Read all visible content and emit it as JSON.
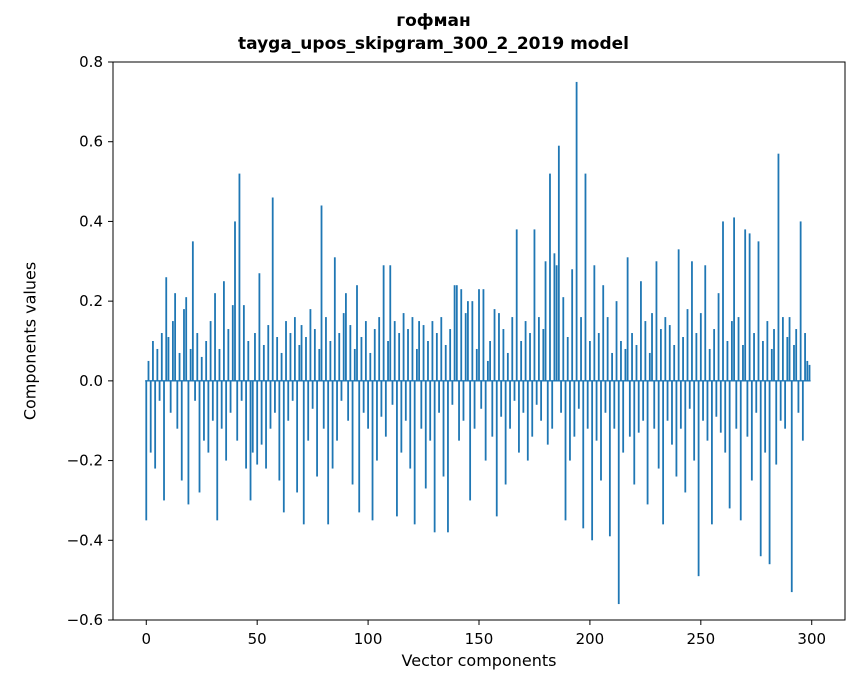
{
  "figure": {
    "title": "гофман",
    "subtitle": "tayga_upos_skipgram_300_2_2019 model",
    "xlabel": "Vector components",
    "ylabel": "Components values"
  },
  "chart_data": {
    "type": "bar",
    "title": "гофман",
    "subtitle": "tayga_upos_skipgram_300_2_2019 model",
    "xlabel": "Vector components",
    "ylabel": "Components values",
    "bar_color": "#1f77b4",
    "n_components": 300,
    "xlim": [
      -15,
      315
    ],
    "ylim": [
      -0.6,
      0.8
    ],
    "x_ticks": [
      0,
      50,
      100,
      150,
      200,
      250,
      300
    ],
    "y_ticks": [
      -0.6,
      -0.4,
      -0.2,
      0.0,
      0.2,
      0.4,
      0.6,
      0.8
    ],
    "grid": false,
    "legend": "none",
    "values": [
      -0.35,
      0.05,
      -0.18,
      0.1,
      -0.22,
      0.08,
      -0.05,
      0.12,
      -0.3,
      0.26,
      0.11,
      -0.08,
      0.15,
      0.22,
      -0.12,
      0.07,
      -0.25,
      0.18,
      0.21,
      -0.31,
      0.08,
      0.35,
      -0.05,
      0.12,
      -0.28,
      0.06,
      -0.15,
      0.1,
      -0.18,
      0.15,
      -0.1,
      0.22,
      -0.35,
      0.08,
      -0.12,
      0.25,
      -0.2,
      0.13,
      -0.08,
      0.19,
      0.4,
      -0.15,
      0.52,
      -0.05,
      0.19,
      -0.22,
      0.1,
      -0.3,
      -0.18,
      0.12,
      -0.21,
      0.27,
      -0.16,
      0.09,
      -0.22,
      0.14,
      -0.12,
      0.46,
      -0.08,
      0.11,
      -0.25,
      0.07,
      -0.33,
      0.15,
      -0.1,
      0.12,
      -0.05,
      0.16,
      -0.28,
      0.09,
      0.14,
      -0.36,
      0.11,
      -0.15,
      0.18,
      -0.07,
      0.13,
      -0.24,
      0.08,
      0.44,
      -0.12,
      0.16,
      -0.36,
      0.1,
      -0.22,
      0.31,
      -0.15,
      0.12,
      -0.05,
      0.17,
      0.22,
      -0.1,
      0.14,
      -0.26,
      0.08,
      0.24,
      -0.33,
      0.11,
      -0.08,
      0.15,
      -0.12,
      0.07,
      -0.35,
      0.13,
      -0.2,
      0.16,
      -0.09,
      0.29,
      -0.14,
      0.1,
      0.29,
      -0.06,
      0.15,
      -0.34,
      0.12,
      -0.18,
      0.17,
      -0.1,
      0.13,
      -0.22,
      0.16,
      -0.36,
      0.08,
      0.15,
      -0.12,
      0.14,
      -0.27,
      0.1,
      -0.15,
      0.15,
      -0.38,
      0.12,
      -0.08,
      0.16,
      -0.24,
      0.09,
      -0.38,
      0.13,
      -0.06,
      0.24,
      0.24,
      -0.15,
      0.23,
      -0.1,
      0.17,
      0.2,
      -0.3,
      0.2,
      -0.12,
      0.08,
      0.23,
      -0.07,
      0.23,
      -0.2,
      0.05,
      0.1,
      -0.14,
      0.18,
      -0.34,
      0.17,
      -0.09,
      0.13,
      -0.26,
      0.07,
      -0.12,
      0.16,
      -0.05,
      0.38,
      -0.18,
      0.1,
      -0.08,
      0.15,
      -0.2,
      0.12,
      -0.14,
      0.38,
      -0.06,
      0.16,
      -0.1,
      0.13,
      0.3,
      -0.16,
      0.52,
      -0.12,
      0.32,
      0.29,
      0.59,
      -0.08,
      0.21,
      -0.35,
      0.11,
      -0.2,
      0.28,
      -0.14,
      0.75,
      -0.07,
      0.16,
      -0.37,
      0.52,
      -0.12,
      0.1,
      -0.4,
      0.29,
      -0.15,
      0.12,
      -0.25,
      0.24,
      -0.08,
      0.16,
      -0.39,
      0.07,
      -0.12,
      0.2,
      -0.56,
      0.1,
      -0.18,
      0.08,
      0.31,
      -0.14,
      0.12,
      -0.26,
      0.09,
      -0.13,
      0.25,
      -0.1,
      0.15,
      -0.31,
      0.07,
      0.17,
      -0.12,
      0.3,
      -0.22,
      0.13,
      -0.36,
      0.16,
      -0.1,
      0.14,
      -0.16,
      0.09,
      -0.24,
      0.33,
      -0.12,
      0.11,
      -0.28,
      0.18,
      -0.07,
      0.3,
      -0.2,
      0.12,
      -0.49,
      0.17,
      -0.1,
      0.29,
      -0.15,
      0.08,
      -0.36,
      0.13,
      -0.09,
      0.22,
      -0.13,
      0.4,
      -0.18,
      0.1,
      -0.32,
      0.15,
      0.41,
      -0.12,
      0.16,
      -0.35,
      0.09,
      0.38,
      -0.14,
      0.37,
      -0.25,
      0.12,
      -0.08,
      0.35,
      -0.44,
      0.1,
      -0.18,
      0.15,
      -0.46,
      0.08,
      0.13,
      -0.21,
      0.57,
      -0.1,
      0.16,
      -0.12,
      0.11,
      0.16,
      -0.53,
      0.09,
      0.13,
      -0.08,
      0.4,
      -0.15,
      0.12,
      0.05,
      0.04
    ]
  }
}
